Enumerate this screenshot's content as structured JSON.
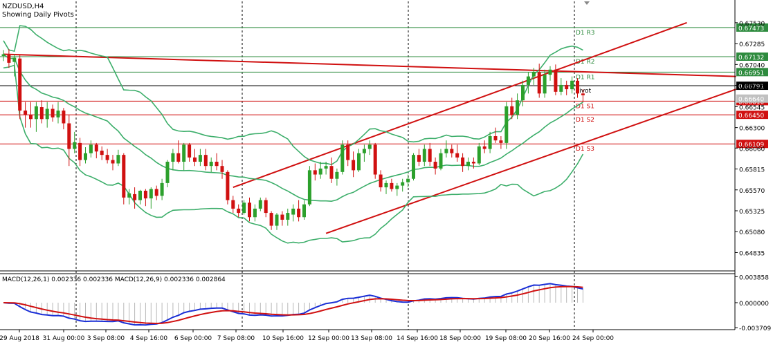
{
  "chart_data": [
    {
      "type": "candlestick",
      "symbol_label": "NZDUSD,H4",
      "note": "Showing Daily Pivots",
      "x_ticks": [
        "29 Aug 2018",
        "31 Aug 00:00",
        "3 Sep 08:00",
        "4 Sep 16:00",
        "6 Sep 00:00",
        "7 Sep 08:00",
        "10 Sep 16:00",
        "12 Sep 00:00",
        "13 Sep 08:00",
        "14 Sep 16:00",
        "18 Sep 00:00",
        "19 Sep 08:00",
        "20 Sep 16:00",
        "24 Sep 00:00"
      ],
      "y_ticks": [
        0.6753,
        0.67285,
        0.6704,
        0.66795,
        0.66545,
        0.663,
        0.6606,
        0.65815,
        0.6557,
        0.65325,
        0.6508,
        0.64835
      ],
      "ylim": [
        0.6462,
        0.6778
      ],
      "current_price": {
        "label": "0.66791",
        "value": 0.66791,
        "hidden_label": "0.66640",
        "hidden_value": 0.6664
      },
      "pivots": [
        {
          "name": "D1 R3",
          "label": "0.67473",
          "value": 0.67473,
          "color": "#2e8b3e"
        },
        {
          "name": "D1 R2",
          "label": "0.67132",
          "value": 0.67132,
          "color": "#2e8b3e"
        },
        {
          "name": "D1 R1",
          "label": "0.66951",
          "value": 0.66951,
          "color": "#2e8b3e"
        },
        {
          "name": "Pivot",
          "label": "",
          "value": 0.66791,
          "color": "#000000"
        },
        {
          "name": "D1 S1",
          "label": "0.66610",
          "value": 0.6661,
          "color": "#d01010"
        },
        {
          "name": "D1 S2",
          "label": "0.66450",
          "value": 0.6645,
          "color": "#d01010"
        },
        {
          "name": "D1 S3",
          "label": "0.66109",
          "value": 0.66109,
          "color": "#d01010"
        }
      ],
      "candles": [
        [
          0.6714,
          0.6721,
          0.6708,
          0.6716
        ],
        [
          0.6715,
          0.6722,
          0.67,
          0.6706
        ],
        [
          0.6707,
          0.6716,
          0.669,
          0.6712
        ],
        [
          0.6711,
          0.6715,
          0.664,
          0.665
        ],
        [
          0.665,
          0.666,
          0.663,
          0.6645
        ],
        [
          0.6645,
          0.666,
          0.663,
          0.664
        ],
        [
          0.664,
          0.666,
          0.6625,
          0.6655
        ],
        [
          0.6654,
          0.6662,
          0.6635,
          0.664
        ],
        [
          0.664,
          0.666,
          0.663,
          0.6652
        ],
        [
          0.6652,
          0.6657,
          0.6637,
          0.6642
        ],
        [
          0.6642,
          0.666,
          0.6635,
          0.665
        ],
        [
          0.665,
          0.6653,
          0.6628,
          0.6635
        ],
        [
          0.6635,
          0.6645,
          0.6585,
          0.6605
        ],
        [
          0.6605,
          0.6625,
          0.66,
          0.6613
        ],
        [
          0.6612,
          0.6618,
          0.6585,
          0.6592
        ],
        [
          0.6592,
          0.6607,
          0.6588,
          0.66
        ],
        [
          0.66,
          0.6615,
          0.6595,
          0.661
        ],
        [
          0.661,
          0.6612,
          0.6594,
          0.6602
        ],
        [
          0.6603,
          0.6608,
          0.6592,
          0.6598
        ],
        [
          0.6598,
          0.6605,
          0.6588,
          0.6592
        ],
        [
          0.6592,
          0.6598,
          0.658,
          0.6588
        ],
        [
          0.6588,
          0.6604,
          0.6585,
          0.6598
        ],
        [
          0.6598,
          0.66,
          0.654,
          0.6548
        ],
        [
          0.6548,
          0.6558,
          0.654,
          0.6553
        ],
        [
          0.6552,
          0.656,
          0.6535,
          0.6545
        ],
        [
          0.6545,
          0.6557,
          0.654,
          0.6556
        ],
        [
          0.6556,
          0.6558,
          0.6538,
          0.6547
        ],
        [
          0.6547,
          0.656,
          0.6535,
          0.6558
        ],
        [
          0.6558,
          0.6562,
          0.6545,
          0.655
        ],
        [
          0.655,
          0.657,
          0.6545,
          0.6565
        ],
        [
          0.6565,
          0.6592,
          0.656,
          0.659
        ],
        [
          0.659,
          0.6605,
          0.658,
          0.66
        ],
        [
          0.66,
          0.6615,
          0.6588,
          0.659
        ],
        [
          0.659,
          0.6612,
          0.658,
          0.661
        ],
        [
          0.661,
          0.6612,
          0.659,
          0.6595
        ],
        [
          0.6595,
          0.6605,
          0.6585,
          0.659
        ],
        [
          0.659,
          0.6605,
          0.6585,
          0.6598
        ],
        [
          0.6598,
          0.6605,
          0.658,
          0.6585
        ],
        [
          0.6585,
          0.6595,
          0.6578,
          0.659
        ],
        [
          0.659,
          0.66,
          0.658,
          0.6585
        ],
        [
          0.6585,
          0.6592,
          0.657,
          0.6578
        ],
        [
          0.6578,
          0.658,
          0.654,
          0.6545
        ],
        [
          0.6545,
          0.655,
          0.653,
          0.6535
        ],
        [
          0.6535,
          0.654,
          0.6525,
          0.653
        ],
        [
          0.653,
          0.6545,
          0.6528,
          0.6542
        ],
        [
          0.6542,
          0.6548,
          0.652,
          0.6525
        ],
        [
          0.6525,
          0.654,
          0.652,
          0.6535
        ],
        [
          0.6535,
          0.6548,
          0.6532,
          0.6545
        ],
        [
          0.6545,
          0.6548,
          0.6525,
          0.653
        ],
        [
          0.653,
          0.6532,
          0.651,
          0.6515
        ],
        [
          0.6515,
          0.653,
          0.651,
          0.6528
        ],
        [
          0.6528,
          0.6532,
          0.6515,
          0.6522
        ],
        [
          0.6522,
          0.6535,
          0.6515,
          0.653
        ],
        [
          0.6528,
          0.654,
          0.652,
          0.6535
        ],
        [
          0.6535,
          0.6545,
          0.652,
          0.6525
        ],
        [
          0.6525,
          0.6545,
          0.6522,
          0.654
        ],
        [
          0.654,
          0.6585,
          0.6538,
          0.658
        ],
        [
          0.658,
          0.6588,
          0.6568,
          0.6575
        ],
        [
          0.6575,
          0.659,
          0.657,
          0.6582
        ],
        [
          0.6582,
          0.659,
          0.6575,
          0.6585
        ],
        [
          0.6585,
          0.6595,
          0.6565,
          0.657
        ],
        [
          0.657,
          0.6582,
          0.6562,
          0.6578
        ],
        [
          0.6578,
          0.6615,
          0.6575,
          0.661
        ],
        [
          0.661,
          0.6615,
          0.6585,
          0.6592
        ],
        [
          0.6592,
          0.6602,
          0.6572,
          0.658
        ],
        [
          0.658,
          0.6605,
          0.6578,
          0.66
        ],
        [
          0.66,
          0.661,
          0.659,
          0.6605
        ],
        [
          0.6605,
          0.6615,
          0.6598,
          0.661
        ],
        [
          0.661,
          0.6612,
          0.657,
          0.6575
        ],
        [
          0.6575,
          0.658,
          0.6555,
          0.656
        ],
        [
          0.656,
          0.6568,
          0.6552,
          0.6565
        ],
        [
          0.6565,
          0.657,
          0.6555,
          0.6558
        ],
        [
          0.6558,
          0.6565,
          0.655,
          0.6562
        ],
        [
          0.6562,
          0.657,
          0.6555,
          0.6566
        ],
        [
          0.6566,
          0.6575,
          0.656,
          0.657
        ],
        [
          0.657,
          0.66,
          0.6568,
          0.6598
        ],
        [
          0.6598,
          0.6605,
          0.6585,
          0.659
        ],
        [
          0.659,
          0.661,
          0.6585,
          0.6605
        ],
        [
          0.6605,
          0.6612,
          0.6585,
          0.659
        ],
        [
          0.659,
          0.6595,
          0.6575,
          0.6582
        ],
        [
          0.6582,
          0.6605,
          0.658,
          0.66
        ],
        [
          0.66,
          0.6615,
          0.6595,
          0.6605
        ],
        [
          0.6605,
          0.661,
          0.6595,
          0.66
        ],
        [
          0.66,
          0.661,
          0.659,
          0.6595
        ],
        [
          0.6595,
          0.66,
          0.6578,
          0.6585
        ],
        [
          0.6585,
          0.6595,
          0.658,
          0.659
        ],
        [
          0.659,
          0.6595,
          0.6582,
          0.6588
        ],
        [
          0.6588,
          0.6612,
          0.6586,
          0.6608
        ],
        [
          0.6608,
          0.6615,
          0.66,
          0.6605
        ],
        [
          0.6605,
          0.6625,
          0.66,
          0.662
        ],
        [
          0.662,
          0.663,
          0.6612,
          0.6615
        ],
        [
          0.6615,
          0.662,
          0.6605,
          0.6612
        ],
        [
          0.6612,
          0.666,
          0.6605,
          0.6655
        ],
        [
          0.6655,
          0.6665,
          0.664,
          0.6645
        ],
        [
          0.6645,
          0.667,
          0.664,
          0.6662
        ],
        [
          0.6662,
          0.6685,
          0.6655,
          0.668
        ],
        [
          0.668,
          0.6695,
          0.667,
          0.669
        ],
        [
          0.669,
          0.67,
          0.668,
          0.6695
        ],
        [
          0.6695,
          0.6705,
          0.6665,
          0.667
        ],
        [
          0.667,
          0.6698,
          0.6665,
          0.6692
        ],
        [
          0.6692,
          0.6702,
          0.6685,
          0.6698
        ],
        [
          0.6698,
          0.6704,
          0.6668,
          0.6672
        ],
        [
          0.6672,
          0.6688,
          0.6668,
          0.668
        ],
        [
          0.668,
          0.6685,
          0.6668,
          0.6675
        ],
        [
          0.6675,
          0.669,
          0.667,
          0.6685
        ],
        [
          0.6685,
          0.6688,
          0.6665,
          0.667
        ],
        [
          0.667,
          0.6675,
          0.666,
          0.6668
        ]
      ],
      "macd": {
        "label": "MACD(12,26,1) 0.002336 0.002336 MACD(12,26,9) 0.002336 0.002864",
        "y_ticks": [
          "0.003858",
          "0.000000",
          "-0.003709"
        ],
        "ylim": [
          -0.004,
          0.0043
        ]
      }
    }
  ]
}
